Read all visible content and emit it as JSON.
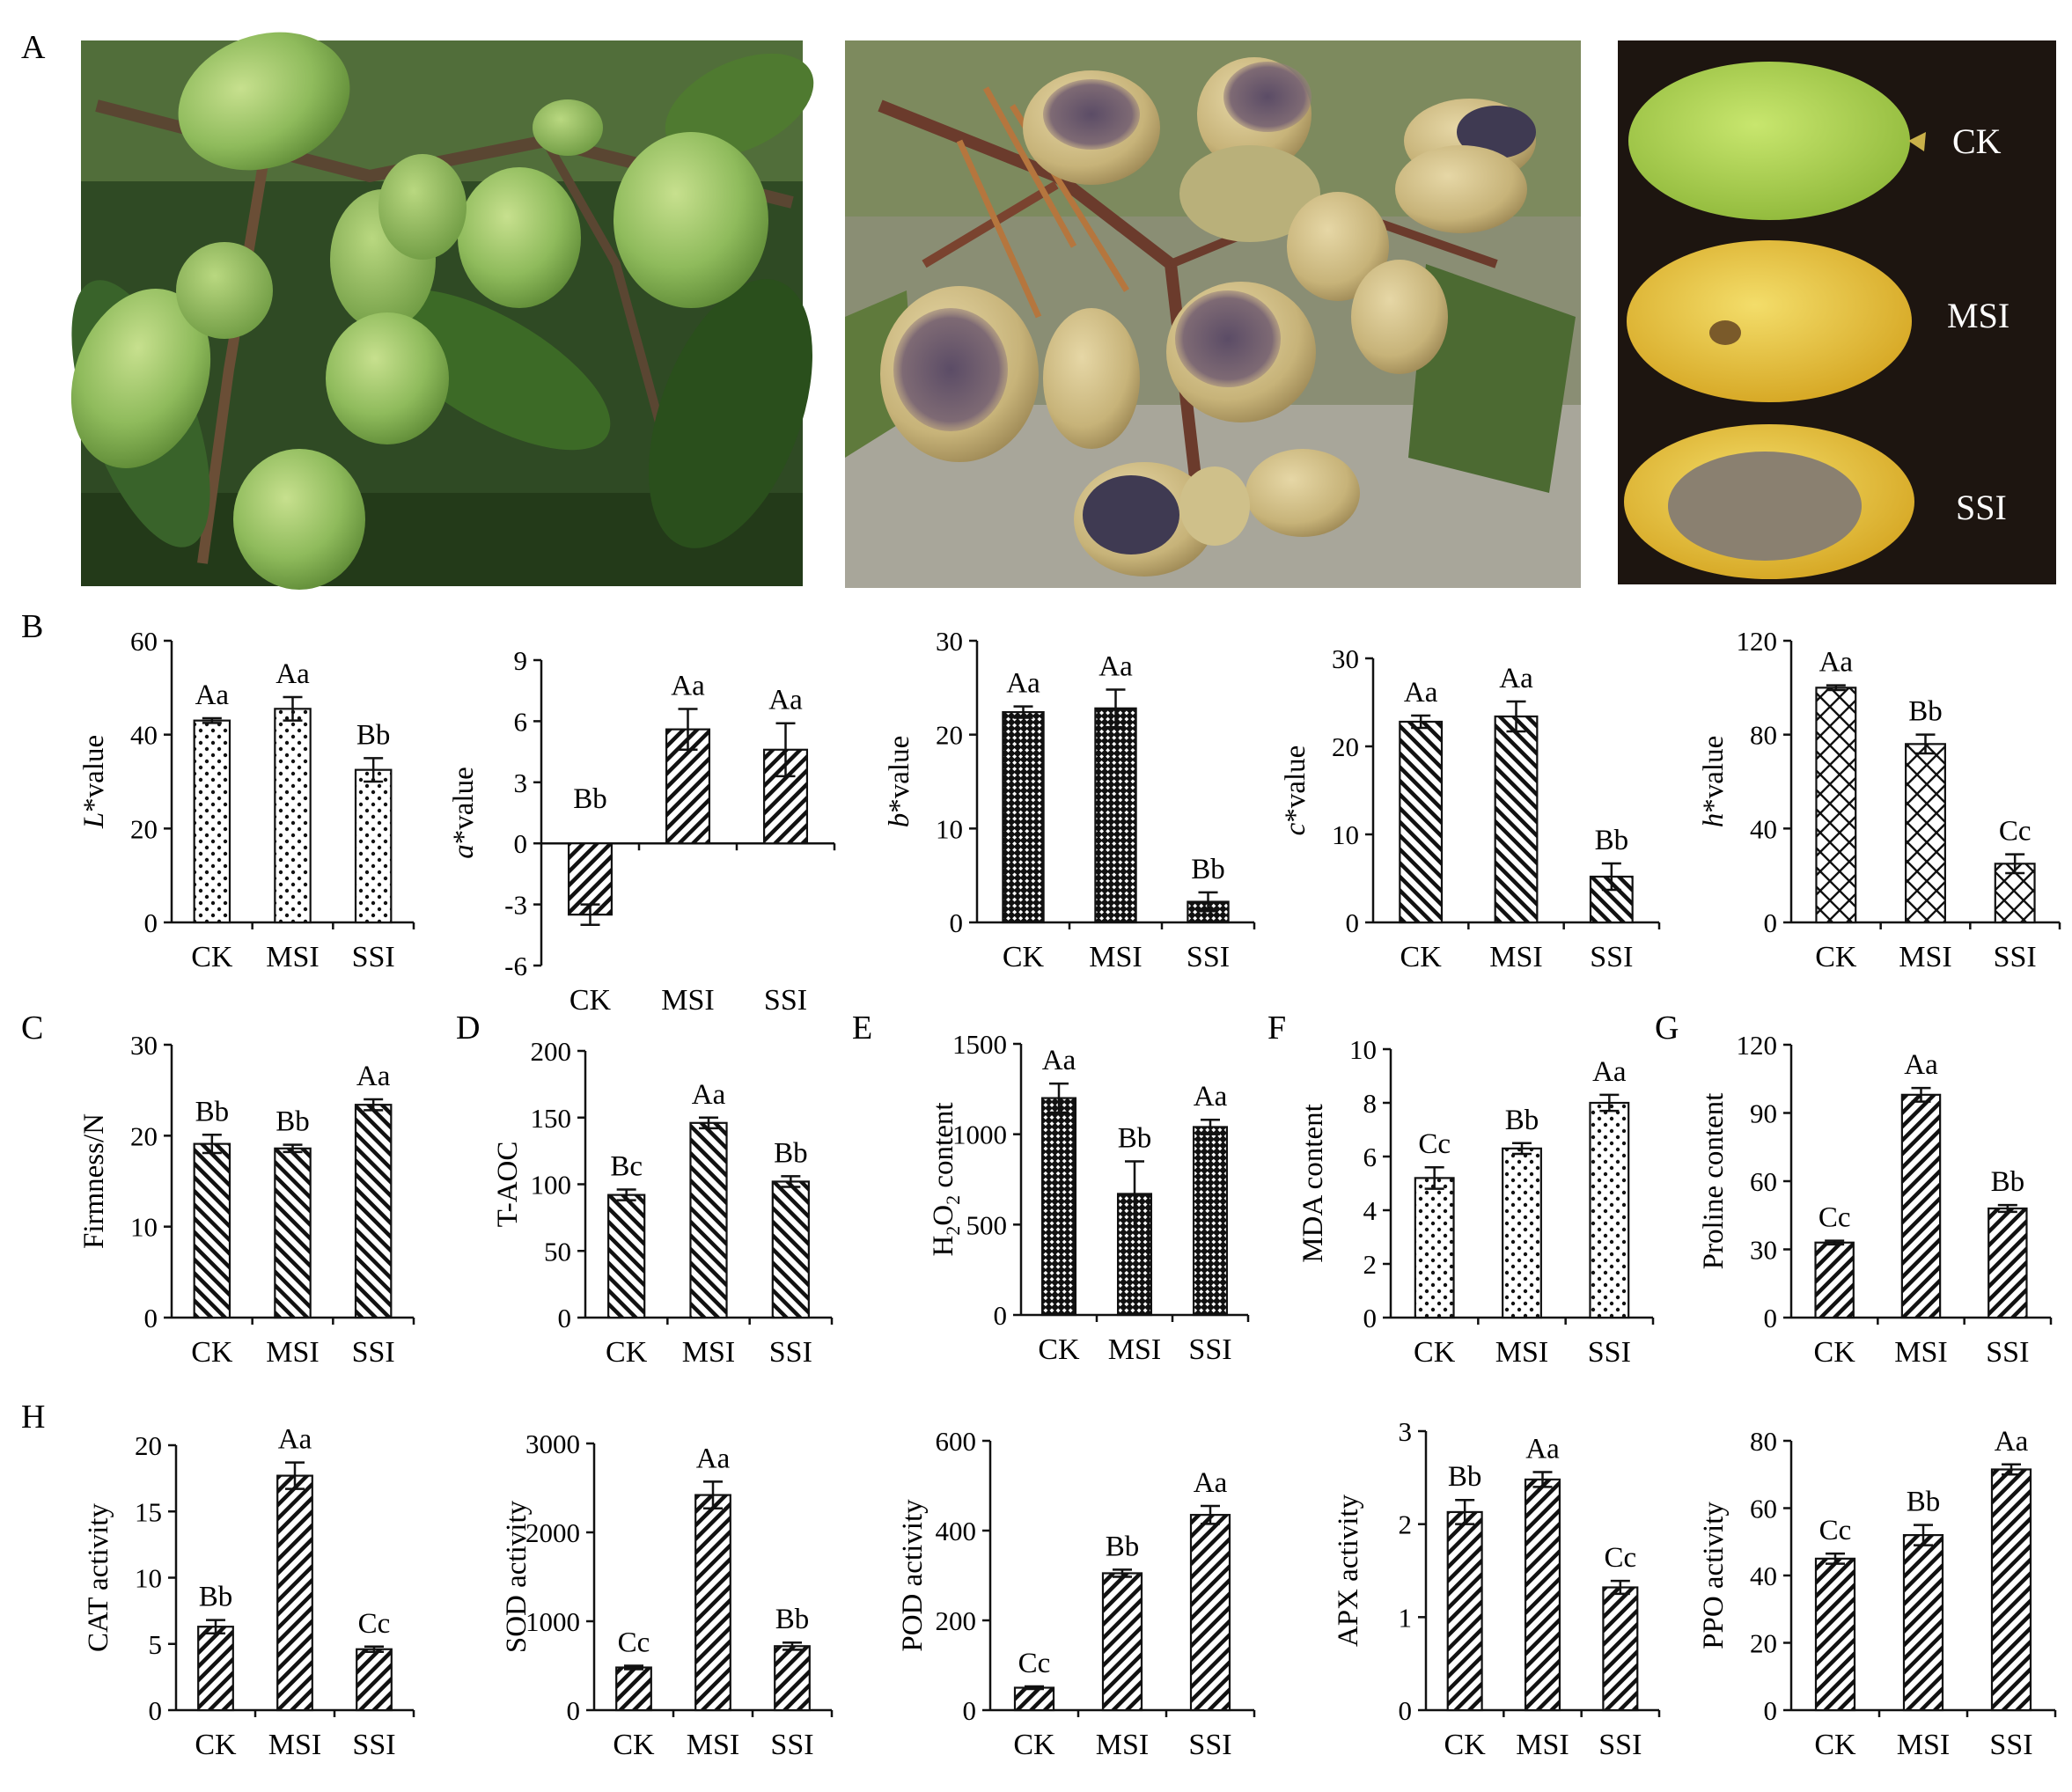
{
  "panel_labels": {
    "A": "A",
    "B": "B",
    "C": "C",
    "D": "D",
    "E": "E",
    "F": "F",
    "G": "G",
    "H": "H"
  },
  "photos": {
    "fruit_labels": [
      "CK",
      "MSI",
      "SSI"
    ],
    "colors": {
      "healthy": "#9cc46a",
      "msi_yellow": "#e8c23a",
      "ssi_lesion": "#8a7f70",
      "background": "#1d1510"
    }
  },
  "colors": {
    "axis": "#111111",
    "bar_fill": "#ffffff",
    "pattern_ink": "#111111"
  },
  "chart_data": [
    {
      "type": "bar",
      "panel": "B",
      "title": "",
      "ylabel_italic": "L",
      "ylabel": "*value",
      "categories": [
        "CK",
        "MSI",
        "SSI"
      ],
      "values": [
        43,
        45.5,
        32.5
      ],
      "errors": [
        0.5,
        2.5,
        2.5
      ],
      "ylim": [
        0,
        60
      ],
      "yticks": [
        0,
        20,
        40,
        60
      ],
      "sig": [
        "Aa",
        "Aa",
        "Bb"
      ],
      "pattern": "dots"
    },
    {
      "type": "bar",
      "panel": "B",
      "title": "",
      "ylabel_italic": "a",
      "ylabel": "*value",
      "categories": [
        "CK",
        "MSI",
        "SSI"
      ],
      "values": [
        -3.5,
        5.6,
        4.6
      ],
      "errors": [
        0.5,
        1.0,
        1.3
      ],
      "ylim": [
        -6,
        9
      ],
      "yticks": [
        -6,
        -3,
        0,
        3,
        6,
        9
      ],
      "sig": [
        "Bb",
        "Aa",
        "Aa"
      ],
      "pattern": "diag"
    },
    {
      "type": "bar",
      "panel": "B",
      "title": "",
      "ylabel_italic": "b",
      "ylabel": "*value",
      "categories": [
        "CK",
        "MSI",
        "SSI"
      ],
      "values": [
        22.4,
        22.8,
        2.2
      ],
      "errors": [
        0.6,
        2.0,
        1.0
      ],
      "ylim": [
        0,
        30
      ],
      "yticks": [
        0,
        10,
        20,
        30
      ],
      "sig": [
        "Aa",
        "Aa",
        "Bb"
      ],
      "pattern": "check"
    },
    {
      "type": "bar",
      "panel": "B",
      "title": "",
      "ylabel_italic": "c",
      "ylabel": "*value",
      "categories": [
        "CK",
        "MSI",
        "SSI"
      ],
      "values": [
        22.8,
        23.4,
        5.2
      ],
      "errors": [
        0.7,
        1.7,
        1.5
      ],
      "ylim": [
        0,
        30
      ],
      "yticks": [
        0,
        10,
        20,
        30
      ],
      "sig": [
        "Aa",
        "Aa",
        "Bb"
      ],
      "pattern": "back"
    },
    {
      "type": "bar",
      "panel": "B",
      "title": "",
      "ylabel_italic": "h",
      "ylabel": "*value",
      "categories": [
        "CK",
        "MSI",
        "SSI"
      ],
      "values": [
        100,
        76,
        25
      ],
      "errors": [
        1,
        4,
        4
      ],
      "ylim": [
        0,
        120
      ],
      "yticks": [
        0,
        40,
        80,
        120
      ],
      "sig": [
        "Aa",
        "Bb",
        "Cc"
      ],
      "pattern": "cross"
    },
    {
      "type": "bar",
      "panel": "C",
      "title": "",
      "ylabel_italic": "",
      "ylabel": "Firmness/N",
      "categories": [
        "CK",
        "MSI",
        "SSI"
      ],
      "values": [
        19.1,
        18.6,
        23.4
      ],
      "errors": [
        1.0,
        0.4,
        0.6
      ],
      "ylim": [
        0,
        30
      ],
      "yticks": [
        0,
        10,
        20,
        30
      ],
      "sig": [
        "Bb",
        "Bb",
        "Aa"
      ],
      "pattern": "back"
    },
    {
      "type": "bar",
      "panel": "D",
      "title": "",
      "ylabel_italic": "",
      "ylabel": "T-AOC",
      "categories": [
        "CK",
        "MSI",
        "SSI"
      ],
      "values": [
        92,
        146,
        102
      ],
      "errors": [
        4,
        4,
        4
      ],
      "ylim": [
        0,
        200
      ],
      "yticks": [
        0,
        50,
        100,
        150,
        200
      ],
      "sig": [
        "Bc",
        "Aa",
        "Bb"
      ],
      "pattern": "back"
    },
    {
      "type": "bar",
      "panel": "E",
      "title": "",
      "ylabel_italic": "",
      "ylabel": "H2O2 content",
      "categories": [
        "CK",
        "MSI",
        "SSI"
      ],
      "values": [
        1200,
        670,
        1040
      ],
      "errors": [
        80,
        180,
        40
      ],
      "ylim": [
        0,
        1500
      ],
      "yticks": [
        0,
        500,
        1000,
        1500
      ],
      "sig": [
        "Aa",
        "Bb",
        "Aa"
      ],
      "pattern": "check"
    },
    {
      "type": "bar",
      "panel": "F",
      "title": "",
      "ylabel_italic": "",
      "ylabel": "MDA content",
      "categories": [
        "CK",
        "MSI",
        "SSI"
      ],
      "values": [
        5.2,
        6.3,
        8.0
      ],
      "errors": [
        0.4,
        0.2,
        0.3
      ],
      "ylim": [
        0,
        10
      ],
      "yticks": [
        0,
        2,
        4,
        6,
        8,
        10
      ],
      "sig": [
        "Cc",
        "Bb",
        "Aa"
      ],
      "pattern": "dots"
    },
    {
      "type": "bar",
      "panel": "G",
      "title": "",
      "ylabel_italic": "",
      "ylabel": "Proline content",
      "categories": [
        "CK",
        "MSI",
        "SSI"
      ],
      "values": [
        33,
        98,
        48
      ],
      "errors": [
        0.8,
        3,
        1.5
      ],
      "ylim": [
        0,
        120
      ],
      "yticks": [
        0,
        30,
        60,
        90,
        120
      ],
      "sig": [
        "Cc",
        "Aa",
        "Bb"
      ],
      "pattern": "diag"
    },
    {
      "type": "bar",
      "panel": "H",
      "title": "",
      "ylabel_italic": "",
      "ylabel": "CAT activity",
      "categories": [
        "CK",
        "MSI",
        "SSI"
      ],
      "values": [
        6.3,
        17.7,
        4.6
      ],
      "errors": [
        0.5,
        1.0,
        0.2
      ],
      "ylim": [
        0,
        20
      ],
      "yticks": [
        0,
        5,
        10,
        15,
        20
      ],
      "sig": [
        "Bb",
        "Aa",
        "Cc"
      ],
      "pattern": "diag"
    },
    {
      "type": "bar",
      "panel": "H",
      "title": "",
      "ylabel_italic": "",
      "ylabel": "SOD activity",
      "categories": [
        "CK",
        "MSI",
        "SSI"
      ],
      "values": [
        480,
        2420,
        720
      ],
      "errors": [
        20,
        150,
        40
      ],
      "ylim": [
        0,
        3000
      ],
      "yticks": [
        0,
        1000,
        2000,
        3000
      ],
      "sig": [
        "Cc",
        "Aa",
        "Bb"
      ],
      "pattern": "diag"
    },
    {
      "type": "bar",
      "panel": "H",
      "title": "",
      "ylabel_italic": "",
      "ylabel": "POD activity",
      "categories": [
        "CK",
        "MSI",
        "SSI"
      ],
      "values": [
        50,
        305,
        435
      ],
      "errors": [
        3,
        8,
        20
      ],
      "ylim": [
        0,
        600
      ],
      "yticks": [
        0,
        200,
        400,
        600
      ],
      "sig": [
        "Cc",
        "Bb",
        "Aa"
      ],
      "pattern": "diag"
    },
    {
      "type": "bar",
      "panel": "H",
      "title": "",
      "ylabel_italic": "",
      "ylabel": "APX activity",
      "categories": [
        "CK",
        "MSI",
        "SSI"
      ],
      "values": [
        2.13,
        2.48,
        1.32
      ],
      "errors": [
        0.13,
        0.08,
        0.07
      ],
      "ylim": [
        0,
        3
      ],
      "yticks": [
        0,
        1,
        2,
        3
      ],
      "sig": [
        "Bb",
        "Aa",
        "Cc"
      ],
      "pattern": "diag"
    },
    {
      "type": "bar",
      "panel": "H",
      "title": "",
      "ylabel_italic": "",
      "ylabel": "PPO activity",
      "categories": [
        "CK",
        "MSI",
        "SSI"
      ],
      "values": [
        45,
        52,
        71.5
      ],
      "errors": [
        1.5,
        3,
        1.5
      ],
      "ylim": [
        0,
        80
      ],
      "yticks": [
        0,
        20,
        40,
        60,
        80
      ],
      "sig": [
        "Cc",
        "Bb",
        "Aa"
      ],
      "pattern": "diag"
    }
  ]
}
